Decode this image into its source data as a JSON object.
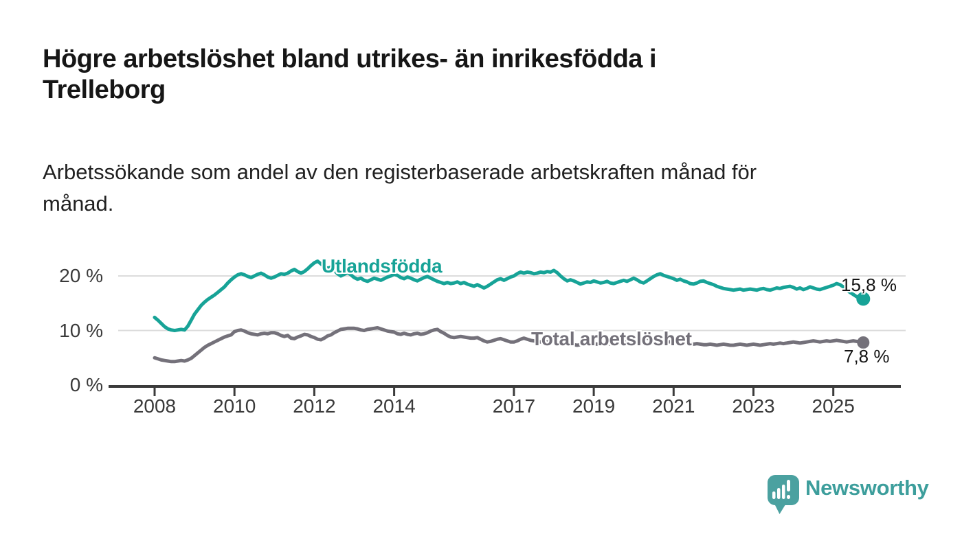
{
  "title": "Högre arbetslöshet bland utrikes- än inrikesfödda i\nTrelleborg",
  "subtitle": "Arbetssökande som andel av den registerbaserade arbetskraften månad för\nmånad.",
  "chart_data": {
    "type": "line",
    "x_unit": "month",
    "x_start": "2008-01",
    "x_end": "2025-10",
    "x_tick_years": [
      2008,
      2010,
      2012,
      2014,
      2017,
      2019,
      2021,
      2023,
      2025
    ],
    "x_tick_labels": [
      "2008",
      "2010",
      "2012",
      "2014",
      "2017",
      "2019",
      "2021",
      "2023",
      "2025"
    ],
    "y_tick_values": [
      20,
      10,
      0
    ],
    "y_tick_labels": [
      "20 %",
      "10 %",
      "0 %"
    ],
    "ylim": [
      0,
      24
    ],
    "grid": "horizontal",
    "legend_position": "inline-labels",
    "axis_color": "#3b3b3b",
    "grid_color": "#dcdcdc",
    "series": [
      {
        "name": "Utlandsfödda",
        "color": "#17a397",
        "end_label": "15,8 %",
        "end_value": 15.8,
        "values": [
          12.4,
          11.9,
          11.3,
          10.7,
          10.3,
          10.1,
          10.0,
          10.1,
          10.2,
          10.1,
          10.8,
          11.9,
          13.0,
          13.8,
          14.6,
          15.2,
          15.7,
          16.1,
          16.5,
          17.0,
          17.5,
          18.0,
          18.7,
          19.3,
          19.8,
          20.2,
          20.4,
          20.2,
          19.9,
          19.7,
          20.0,
          20.3,
          20.5,
          20.2,
          19.8,
          19.6,
          19.8,
          20.1,
          20.4,
          20.3,
          20.5,
          20.9,
          21.2,
          20.8,
          20.5,
          20.8,
          21.3,
          21.9,
          22.4,
          22.7,
          22.2,
          21.7,
          21.4,
          21.6,
          21.0,
          20.4,
          20.0,
          20.3,
          20.6,
          20.2,
          19.7,
          19.4,
          19.6,
          19.2,
          19.0,
          19.3,
          19.6,
          19.4,
          19.2,
          19.5,
          19.8,
          20.0,
          20.3,
          20.1,
          19.7,
          19.5,
          19.8,
          19.6,
          19.3,
          19.1,
          19.4,
          19.7,
          19.9,
          19.6,
          19.3,
          19.0,
          18.8,
          18.6,
          18.8,
          18.6,
          18.7,
          18.9,
          18.6,
          18.8,
          18.5,
          18.3,
          18.1,
          18.4,
          18.1,
          17.8,
          18.1,
          18.5,
          18.9,
          19.3,
          19.5,
          19.2,
          19.5,
          19.8,
          20.0,
          20.4,
          20.7,
          20.5,
          20.7,
          20.6,
          20.4,
          20.5,
          20.7,
          20.6,
          20.8,
          20.7,
          21.0,
          20.6,
          20.0,
          19.5,
          19.1,
          19.3,
          19.1,
          18.8,
          18.5,
          18.7,
          18.9,
          18.8,
          19.1,
          18.9,
          18.7,
          18.8,
          19.0,
          18.7,
          18.6,
          18.8,
          19.0,
          19.2,
          19.0,
          19.3,
          19.6,
          19.3,
          18.9,
          18.7,
          19.1,
          19.5,
          19.9,
          20.2,
          20.4,
          20.1,
          19.9,
          19.7,
          19.5,
          19.2,
          19.4,
          19.1,
          18.9,
          18.6,
          18.5,
          18.7,
          19.0,
          19.1,
          18.8,
          18.6,
          18.4,
          18.1,
          17.9,
          17.7,
          17.6,
          17.5,
          17.4,
          17.5,
          17.6,
          17.4,
          17.5,
          17.6,
          17.5,
          17.4,
          17.6,
          17.7,
          17.5,
          17.4,
          17.6,
          17.8,
          17.7,
          17.9,
          18.0,
          18.1,
          17.9,
          17.6,
          17.8,
          17.5,
          17.7,
          18.0,
          17.8,
          17.6,
          17.5,
          17.7,
          17.9,
          18.1,
          18.3,
          18.6,
          18.4,
          18.0,
          17.5,
          17.0,
          16.6,
          16.2,
          15.9,
          15.8
        ]
      },
      {
        "name": "Total arbetslöshet",
        "color": "#74717a",
        "end_label": "7,8 %",
        "end_value": 7.8,
        "values": [
          5.0,
          4.8,
          4.6,
          4.5,
          4.4,
          4.3,
          4.3,
          4.4,
          4.5,
          4.4,
          4.6,
          4.9,
          5.4,
          5.9,
          6.4,
          6.9,
          7.3,
          7.6,
          7.9,
          8.2,
          8.5,
          8.8,
          9.0,
          9.2,
          9.8,
          10.0,
          10.1,
          9.9,
          9.6,
          9.4,
          9.3,
          9.2,
          9.4,
          9.5,
          9.4,
          9.6,
          9.6,
          9.4,
          9.1,
          8.9,
          9.1,
          8.6,
          8.5,
          8.8,
          9.0,
          9.3,
          9.2,
          8.9,
          8.7,
          8.4,
          8.3,
          8.6,
          9.0,
          9.2,
          9.6,
          9.9,
          10.2,
          10.3,
          10.4,
          10.4,
          10.4,
          10.3,
          10.1,
          10.0,
          10.2,
          10.3,
          10.4,
          10.5,
          10.3,
          10.1,
          9.9,
          9.8,
          9.7,
          9.4,
          9.3,
          9.5,
          9.3,
          9.2,
          9.4,
          9.5,
          9.3,
          9.4,
          9.6,
          9.9,
          10.1,
          10.2,
          9.8,
          9.5,
          9.1,
          8.8,
          8.7,
          8.8,
          8.9,
          8.8,
          8.7,
          8.6,
          8.6,
          8.7,
          8.4,
          8.1,
          7.9,
          8.0,
          8.2,
          8.4,
          8.5,
          8.3,
          8.1,
          7.9,
          7.9,
          8.1,
          8.4,
          8.6,
          8.4,
          8.2,
          8.1,
          8.0,
          7.9,
          7.8,
          7.9,
          8.0,
          7.8,
          7.7,
          7.6,
          7.5,
          7.4,
          7.5,
          7.4,
          7.3,
          7.4,
          7.5,
          7.4,
          7.5,
          7.6,
          7.5,
          7.4,
          7.5,
          7.6,
          7.5,
          7.6,
          7.7,
          7.8,
          7.9,
          7.8,
          7.9,
          8.0,
          8.1,
          8.3,
          8.5,
          8.6,
          8.5,
          8.4,
          8.3,
          8.2,
          8.1,
          8.0,
          7.9,
          7.9,
          8.0,
          7.9,
          7.8,
          7.7,
          7.6,
          7.5,
          7.6,
          7.5,
          7.4,
          7.4,
          7.5,
          7.4,
          7.3,
          7.4,
          7.5,
          7.4,
          7.3,
          7.3,
          7.4,
          7.5,
          7.4,
          7.3,
          7.4,
          7.5,
          7.4,
          7.3,
          7.4,
          7.5,
          7.6,
          7.5,
          7.6,
          7.7,
          7.6,
          7.7,
          7.8,
          7.9,
          7.8,
          7.7,
          7.8,
          7.9,
          8.0,
          8.1,
          8.0,
          7.9,
          8.0,
          8.1,
          8.0,
          8.1,
          8.2,
          8.1,
          8.0,
          7.9,
          8.0,
          8.1,
          8.0,
          7.9,
          7.8
        ]
      }
    ]
  },
  "logo": {
    "name": "Newsworthy",
    "icon": "bar-chart-speech-bubble-icon",
    "icon_color": "#4ba1a0",
    "text_color": "#3d9e9c"
  }
}
